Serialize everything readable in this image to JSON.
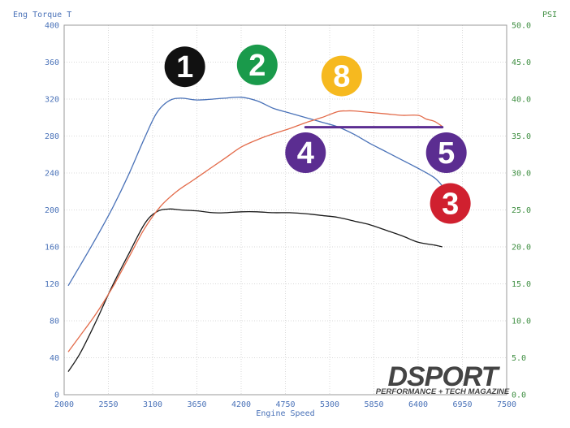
{
  "chart_data": {
    "type": "line",
    "xlabel": "Engine Speed",
    "ylabel_left": "Eng Torque T",
    "ylabel_right": "PSI",
    "xlim": [
      2000,
      7500
    ],
    "ylim_left": [
      0,
      400
    ],
    "ylim_right": [
      0,
      50
    ],
    "x_ticks": [
      "2000",
      "2550",
      "3100",
      "3650",
      "4200",
      "4750",
      "5300",
      "5850",
      "6400",
      "6950",
      "7500"
    ],
    "y_ticks_left": [
      "0",
      "40",
      "80",
      "120",
      "160",
      "200",
      "240",
      "280",
      "320",
      "360",
      "400"
    ],
    "y_ticks_right": [
      "0.0",
      "5.0",
      "10.0",
      "15.0",
      "20.0",
      "25.0",
      "30.0",
      "35.0",
      "40.0",
      "45.0",
      "50.0"
    ],
    "grid": true,
    "series": [
      {
        "axis": "left",
        "color": "#4a72b8",
        "x": [
          2050,
          2200,
          2400,
          2600,
          2800,
          3000,
          3150,
          3300,
          3450,
          3650,
          3850,
          4000,
          4200,
          4400,
          4600,
          4800,
          5000,
          5200,
          5400,
          5600,
          5800,
          6000,
          6200,
          6400,
          6600,
          6700
        ],
        "values": [
          118,
          140,
          170,
          202,
          238,
          278,
          305,
          318,
          321,
          319,
          320,
          321,
          322,
          318,
          310,
          305,
          300,
          295,
          290,
          282,
          272,
          263,
          254,
          245,
          235,
          226
        ]
      },
      {
        "axis": "left",
        "color": "#1a1a1a",
        "x": [
          2050,
          2200,
          2400,
          2600,
          2800,
          3000,
          3150,
          3300,
          3450,
          3650,
          3850,
          4000,
          4200,
          4400,
          4600,
          4800,
          5000,
          5200,
          5400,
          5600,
          5800,
          6000,
          6200,
          6400,
          6600,
          6700
        ],
        "values": [
          25,
          45,
          80,
          118,
          152,
          185,
          198,
          201,
          200,
          199,
          197,
          197,
          198,
          198,
          197,
          197,
          196,
          194,
          192,
          188,
          184,
          178,
          172,
          165,
          162,
          160
        ]
      },
      {
        "axis": "right",
        "color": "#e36b4a",
        "x": [
          2050,
          2200,
          2400,
          2600,
          2800,
          3000,
          3200,
          3400,
          3600,
          3800,
          4000,
          4200,
          4400,
          4600,
          4800,
          5000,
          5200,
          5400,
          5500,
          5600,
          5800,
          6000,
          6200,
          6400,
          6500,
          6600,
          6700
        ],
        "values": [
          5.8,
          8.0,
          11.0,
          14.5,
          18.5,
          22.5,
          25.5,
          27.5,
          29.0,
          30.5,
          32.0,
          33.5,
          34.5,
          35.3,
          36.0,
          36.8,
          37.5,
          38.3,
          38.4,
          38.4,
          38.2,
          38.0,
          37.8,
          37.8,
          37.3,
          37.0,
          36.3
        ]
      }
    ],
    "reference_line": {
      "color": "#5b2d91",
      "x": [
        5000,
        6700
      ],
      "y_right": 36.2
    },
    "markers": [
      {
        "label": "1",
        "bg": "#111111",
        "fg": "#ffffff",
        "at_x": 3500,
        "at_y_left": 355
      },
      {
        "label": "2",
        "bg": "#1a9a4b",
        "fg": "#ffffff",
        "at_x": 4400,
        "at_y_left": 357
      },
      {
        "label": "8",
        "bg": "#f6b91f",
        "fg": "#ffffff",
        "at_x": 5450,
        "at_y_left": 345
      },
      {
        "label": "4",
        "bg": "#5b2d91",
        "fg": "#ffffff",
        "at_x": 5000,
        "at_y_left": 262
      },
      {
        "label": "5",
        "bg": "#5b2d91",
        "fg": "#ffffff",
        "at_x": 6750,
        "at_y_left": 262
      },
      {
        "label": "3",
        "bg": "#d0202f",
        "fg": "#ffffff",
        "at_x": 6800,
        "at_y_left": 207
      }
    ],
    "colors": {
      "left_axis": "#4a72b8",
      "right_axis": "#3e8e41",
      "grid": "#d9d9d9"
    }
  },
  "brand": {
    "name": "DSPORT",
    "tagline": "PERFORMANCE + TECH MAGAZINE"
  }
}
